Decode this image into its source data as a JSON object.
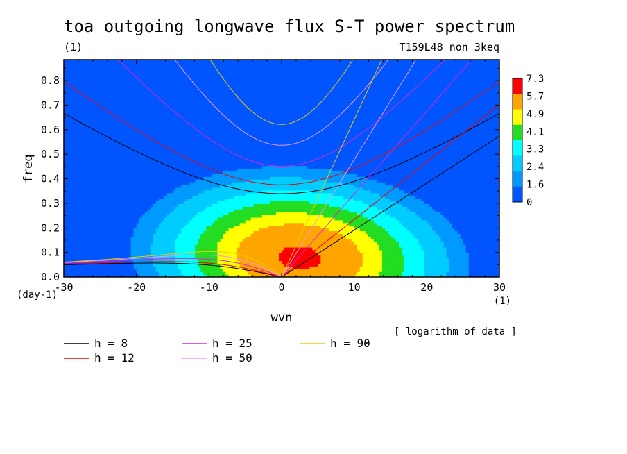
{
  "chart_data": {
    "type": "heatmap",
    "title": "toa outgoing longwave flux S-T power spectrum",
    "title_unit": "(1)",
    "run_label": "T159L48_non_3keq",
    "xlabel": "wvn",
    "x_unit": "(1)",
    "ylabel": "freq",
    "y_unit": "(day-1)",
    "xlim": [
      -30,
      30
    ],
    "ylim": [
      0,
      0.885
    ],
    "xticks": [
      -30,
      -20,
      -10,
      0,
      10,
      20,
      30
    ],
    "yticks": [
      0,
      0.1,
      0.2,
      0.3,
      0.4,
      0.5,
      0.6,
      0.7,
      0.8
    ],
    "note": "[ logarithm of data ]",
    "colorbar": {
      "labels": [
        "7.3",
        "5.7",
        "4.9",
        "4.1",
        "3.3",
        "2.4",
        "1.6",
        "0"
      ],
      "colors": [
        "#ff0000",
        "#ffa500",
        "#ffff00",
        "#22dd22",
        "#00ffff",
        "#00ccff",
        "#0099ff",
        "#0055ff"
      ]
    },
    "contour_levels": [
      {
        "min": 0.0,
        "max": 1.6,
        "color": "#0055ff"
      },
      {
        "min": 1.6,
        "max": 2.4,
        "color": "#0099ff"
      },
      {
        "min": 2.4,
        "max": 3.3,
        "color": "#00ccff"
      },
      {
        "min": 3.3,
        "max": 4.1,
        "color": "#00ffff"
      },
      {
        "min": 4.1,
        "max": 4.9,
        "color": "#22dd22"
      },
      {
        "min": 4.9,
        "max": 5.7,
        "color": "#ffff00"
      },
      {
        "min": 5.7,
        "max": 7.3,
        "color": "#ffa500"
      },
      {
        "min": 7.3,
        "max": 8.0,
        "color": "#ff0000"
      }
    ],
    "dispersion_curves": [
      {
        "name": "h =  8",
        "h": 8,
        "color": "#000000"
      },
      {
        "name": "h = 12",
        "h": 12,
        "color": "#ee0000"
      },
      {
        "name": "h = 25",
        "h": 25,
        "color": "#dd22dd"
      },
      {
        "name": "h = 50",
        "h": 50,
        "color": "#ee99ee"
      },
      {
        "name": "h = 90",
        "h": 90,
        "color": "#eecc00"
      }
    ]
  }
}
